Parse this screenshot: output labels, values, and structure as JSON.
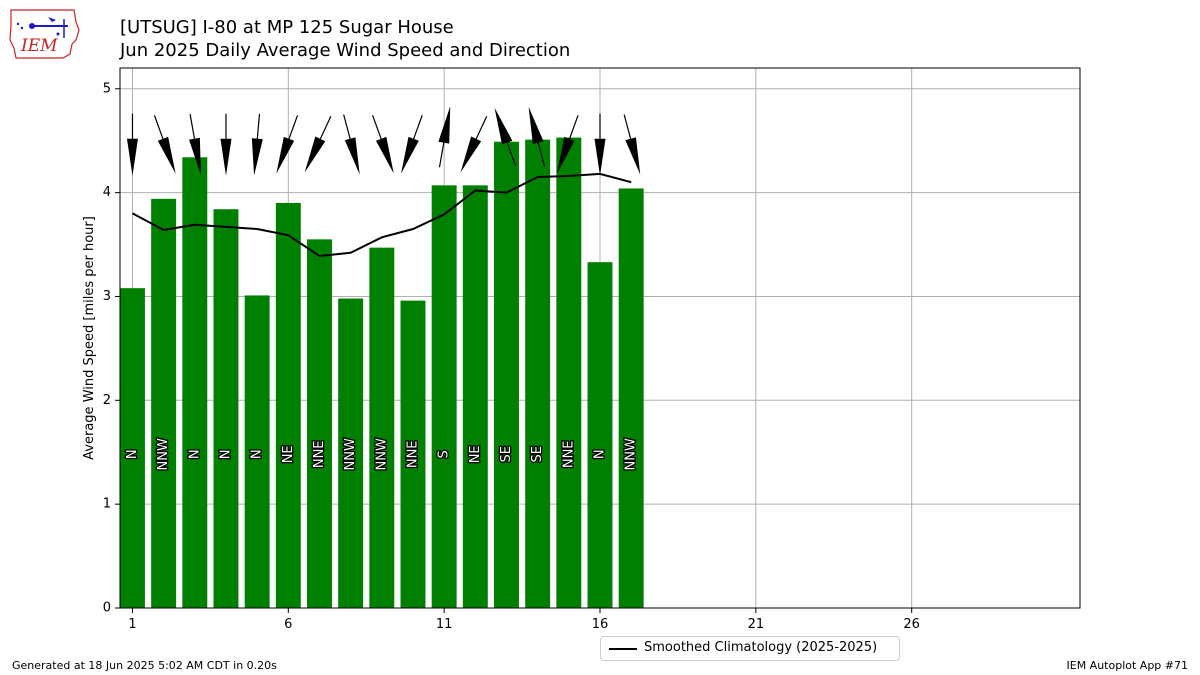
{
  "header": {
    "title_line1": "[UTSUG] I-80 at MP 125 Sugar House",
    "title_line2": "Jun 2025 Daily Average Wind Speed and Direction"
  },
  "logo": {
    "text": "IEM",
    "icon": "iem-iowa-map-logo"
  },
  "footer": {
    "left": "Generated at 18 Jun 2025 5:02 AM CDT in 0.20s",
    "right": "IEM Autoplot App #71"
  },
  "legend": {
    "label": "Smoothed Climatology (2025-2025)"
  },
  "colors": {
    "bar": "#008000",
    "line": "#000000",
    "grid": "#b0b0b0",
    "logo_red": "#cc2222",
    "logo_blue": "#1a1acc"
  },
  "chart_data": {
    "type": "bar",
    "ylabel": "Average Wind Speed [miles per hour]",
    "xlabel": "",
    "xlim": [
      0.6,
      31.4
    ],
    "ylim": [
      0,
      5.2
    ],
    "xticks": [
      1,
      6,
      11,
      16,
      21,
      26
    ],
    "yticks": [
      0,
      1,
      2,
      3,
      4,
      5
    ],
    "grid": true,
    "legend_position": "bottom-center",
    "days": [
      1,
      2,
      3,
      4,
      5,
      6,
      7,
      8,
      9,
      10,
      11,
      12,
      13,
      14,
      15,
      16,
      17
    ],
    "values": [
      3.08,
      3.94,
      4.34,
      3.84,
      3.01,
      3.9,
      3.55,
      2.98,
      3.47,
      2.96,
      4.07,
      4.07,
      4.49,
      4.51,
      4.53,
      3.33,
      4.04
    ],
    "directions": [
      "N",
      "NNW",
      "N",
      "N",
      "N",
      "NE",
      "NNE",
      "NNW",
      "NNW",
      "NNE",
      "S",
      "NE",
      "SE",
      "SE",
      "NNE",
      "N",
      "NNW"
    ],
    "arrow_degrees": [
      0,
      340,
      350,
      0,
      5,
      20,
      25,
      345,
      340,
      20,
      190,
      25,
      160,
      165,
      20,
      0,
      345
    ],
    "climatology": {
      "name": "Smoothed Climatology (2025-2025)",
      "values": [
        3.8,
        3.64,
        3.69,
        3.67,
        3.65,
        3.59,
        3.39,
        3.42,
        3.57,
        3.65,
        3.79,
        4.02,
        4.0,
        4.15,
        4.16,
        4.18,
        4.1
      ]
    }
  }
}
